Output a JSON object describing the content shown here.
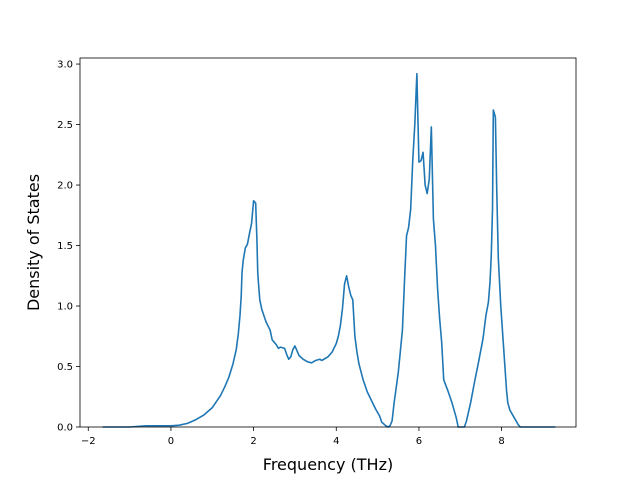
{
  "chart_data": {
    "type": "line",
    "title": "",
    "xlabel": "Frequency (THz)",
    "ylabel": "Density of States",
    "xlim": [
      -2.2,
      9.8
    ],
    "ylim": [
      0.0,
      3.05
    ],
    "x_ticks": [
      -2,
      0,
      2,
      4,
      6,
      8
    ],
    "x_tick_labels": [
      "−2",
      "0",
      "2",
      "4",
      "6",
      "8"
    ],
    "y_ticks": [
      0.0,
      0.5,
      1.0,
      1.5,
      2.0,
      2.5,
      3.0
    ],
    "y_tick_labels": [
      "0.0",
      "0.5",
      "1.0",
      "1.5",
      "2.0",
      "2.5",
      "3.0"
    ],
    "grid": false,
    "legend": "none",
    "series": [
      {
        "color": "#1f77b4",
        "points": [
          [
            -1.65,
            0.0
          ],
          [
            -1.0,
            0.0
          ],
          [
            -0.6,
            0.01
          ],
          [
            0.0,
            0.01
          ],
          [
            0.2,
            0.015
          ],
          [
            0.4,
            0.03
          ],
          [
            0.6,
            0.06
          ],
          [
            0.8,
            0.1
          ],
          [
            1.0,
            0.16
          ],
          [
            1.1,
            0.21
          ],
          [
            1.2,
            0.26
          ],
          [
            1.3,
            0.33
          ],
          [
            1.4,
            0.41
          ],
          [
            1.5,
            0.52
          ],
          [
            1.58,
            0.64
          ],
          [
            1.63,
            0.77
          ],
          [
            1.67,
            0.92
          ],
          [
            1.7,
            1.08
          ],
          [
            1.72,
            1.28
          ],
          [
            1.75,
            1.38
          ],
          [
            1.8,
            1.48
          ],
          [
            1.85,
            1.51
          ],
          [
            1.9,
            1.6
          ],
          [
            1.95,
            1.68
          ],
          [
            2.0,
            1.87
          ],
          [
            2.05,
            1.85
          ],
          [
            2.08,
            1.55
          ],
          [
            2.1,
            1.28
          ],
          [
            2.12,
            1.18
          ],
          [
            2.15,
            1.05
          ],
          [
            2.2,
            0.97
          ],
          [
            2.3,
            0.87
          ],
          [
            2.4,
            0.8
          ],
          [
            2.45,
            0.72
          ],
          [
            2.5,
            0.7
          ],
          [
            2.55,
            0.68
          ],
          [
            2.6,
            0.65
          ],
          [
            2.65,
            0.66
          ],
          [
            2.75,
            0.65
          ],
          [
            2.8,
            0.6
          ],
          [
            2.85,
            0.56
          ],
          [
            2.9,
            0.58
          ],
          [
            2.95,
            0.64
          ],
          [
            3.0,
            0.67
          ],
          [
            3.05,
            0.63
          ],
          [
            3.1,
            0.59
          ],
          [
            3.2,
            0.56
          ],
          [
            3.3,
            0.54
          ],
          [
            3.4,
            0.53
          ],
          [
            3.5,
            0.55
          ],
          [
            3.6,
            0.56
          ],
          [
            3.65,
            0.55
          ],
          [
            3.7,
            0.56
          ],
          [
            3.8,
            0.58
          ],
          [
            3.9,
            0.62
          ],
          [
            4.0,
            0.69
          ],
          [
            4.05,
            0.75
          ],
          [
            4.1,
            0.84
          ],
          [
            4.15,
            0.98
          ],
          [
            4.2,
            1.18
          ],
          [
            4.25,
            1.25
          ],
          [
            4.3,
            1.16
          ],
          [
            4.35,
            1.09
          ],
          [
            4.4,
            1.05
          ],
          [
            4.45,
            0.75
          ],
          [
            4.5,
            0.62
          ],
          [
            4.55,
            0.52
          ],
          [
            4.65,
            0.39
          ],
          [
            4.75,
            0.29
          ],
          [
            4.85,
            0.22
          ],
          [
            4.95,
            0.15
          ],
          [
            5.05,
            0.09
          ],
          [
            5.1,
            0.04
          ],
          [
            5.2,
            0.01
          ],
          [
            5.25,
            0.0
          ],
          [
            5.3,
            0.01
          ],
          [
            5.35,
            0.05
          ],
          [
            5.4,
            0.2
          ],
          [
            5.5,
            0.45
          ],
          [
            5.6,
            0.8
          ],
          [
            5.65,
            1.2
          ],
          [
            5.7,
            1.58
          ],
          [
            5.75,
            1.65
          ],
          [
            5.8,
            1.8
          ],
          [
            5.85,
            2.2
          ],
          [
            5.9,
            2.5
          ],
          [
            5.95,
            2.92
          ],
          [
            6.0,
            2.19
          ],
          [
            6.05,
            2.2
          ],
          [
            6.1,
            2.27
          ],
          [
            6.15,
            2.0
          ],
          [
            6.2,
            1.93
          ],
          [
            6.25,
            2.05
          ],
          [
            6.3,
            2.48
          ],
          [
            6.35,
            1.72
          ],
          [
            6.4,
            1.5
          ],
          [
            6.45,
            1.15
          ],
          [
            6.5,
            0.9
          ],
          [
            6.55,
            0.7
          ],
          [
            6.6,
            0.39
          ],
          [
            6.7,
            0.3
          ],
          [
            6.8,
            0.2
          ],
          [
            6.9,
            0.08
          ],
          [
            6.95,
            0.0
          ],
          [
            7.1,
            0.0
          ],
          [
            7.15,
            0.05
          ],
          [
            7.25,
            0.2
          ],
          [
            7.35,
            0.38
          ],
          [
            7.45,
            0.55
          ],
          [
            7.55,
            0.73
          ],
          [
            7.62,
            0.92
          ],
          [
            7.68,
            1.03
          ],
          [
            7.72,
            1.2
          ],
          [
            7.75,
            1.42
          ],
          [
            7.78,
            1.8
          ],
          [
            7.8,
            2.62
          ],
          [
            7.85,
            2.56
          ],
          [
            7.88,
            2.0
          ],
          [
            7.92,
            1.4
          ],
          [
            7.95,
            1.2
          ],
          [
            7.98,
            1.0
          ],
          [
            8.02,
            0.8
          ],
          [
            8.08,
            0.5
          ],
          [
            8.12,
            0.3
          ],
          [
            8.15,
            0.2
          ],
          [
            8.2,
            0.14
          ],
          [
            8.3,
            0.08
          ],
          [
            8.4,
            0.02
          ],
          [
            8.45,
            0.0
          ],
          [
            9.3,
            0.0
          ]
        ]
      }
    ]
  }
}
